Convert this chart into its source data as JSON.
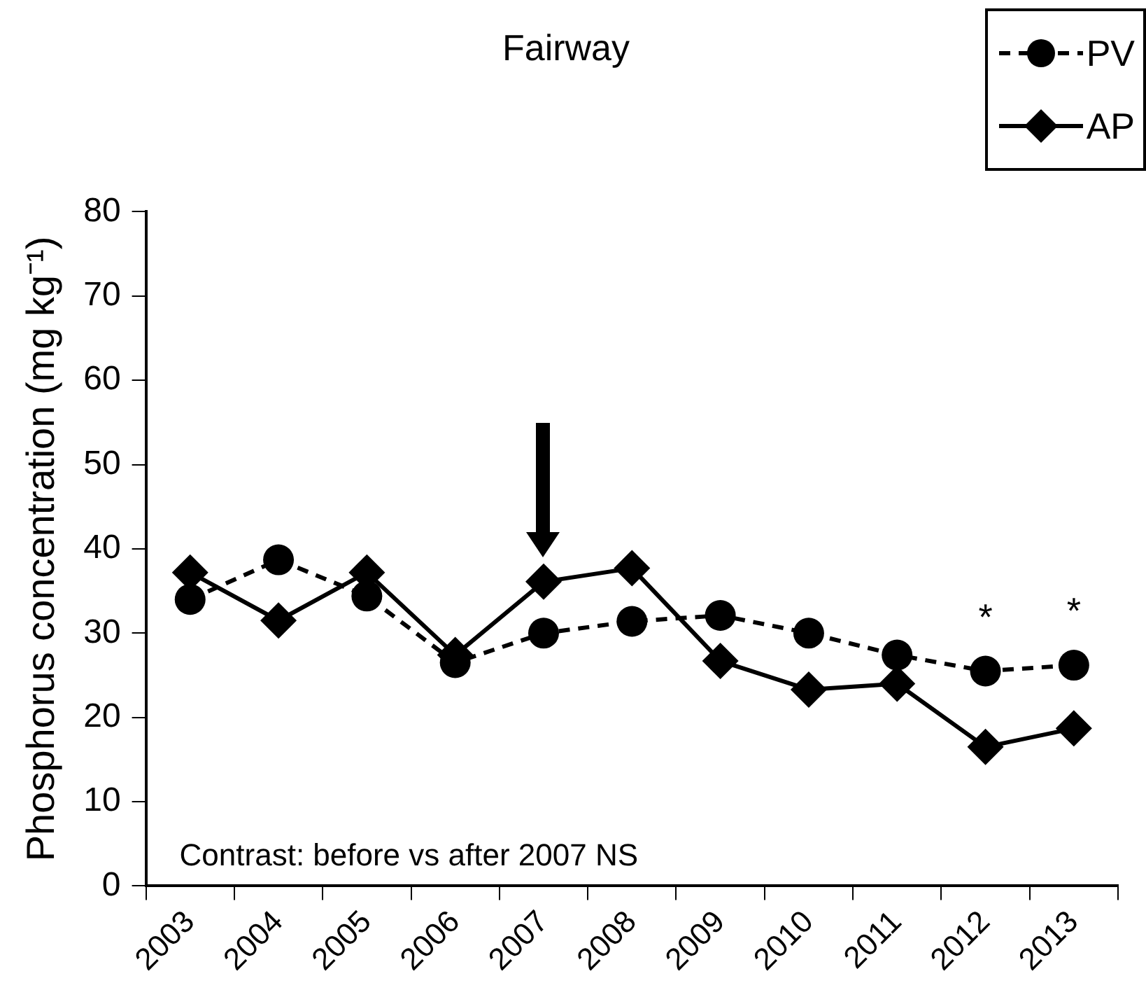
{
  "chart_data": {
    "type": "line",
    "title": "Fairway",
    "ylabel": "Phosphorus concentration (mg kg⁻¹)",
    "categories": [
      "2003",
      "2004",
      "2005",
      "2006",
      "2007",
      "2008",
      "2009",
      "2010",
      "2011",
      "2012",
      "2013"
    ],
    "series": [
      {
        "name": "PV",
        "color": "#000000",
        "marker": "circle",
        "line_style": "dashed",
        "values": [
          34.0,
          38.7,
          34.4,
          26.5,
          30.0,
          31.4,
          32.1,
          30.0,
          27.4,
          25.5,
          26.2
        ]
      },
      {
        "name": "AP",
        "color": "#000000",
        "marker": "diamond",
        "line_style": "solid",
        "values": [
          37.2,
          31.5,
          37.2,
          27.4,
          36.1,
          37.7,
          26.7,
          23.3,
          24.0,
          16.5,
          18.7
        ]
      }
    ],
    "ylim": [
      0,
      80
    ],
    "yticks": [
      0,
      10,
      20,
      30,
      40,
      50,
      60,
      70,
      80
    ],
    "grid": false,
    "legend": "top right",
    "annotations": [
      "Contrast: before vs after 2007 NS",
      {
        "text": "*",
        "x": "2012",
        "y": 25.5
      },
      {
        "text": "*",
        "x": "2013",
        "y": 26.2
      }
    ]
  }
}
